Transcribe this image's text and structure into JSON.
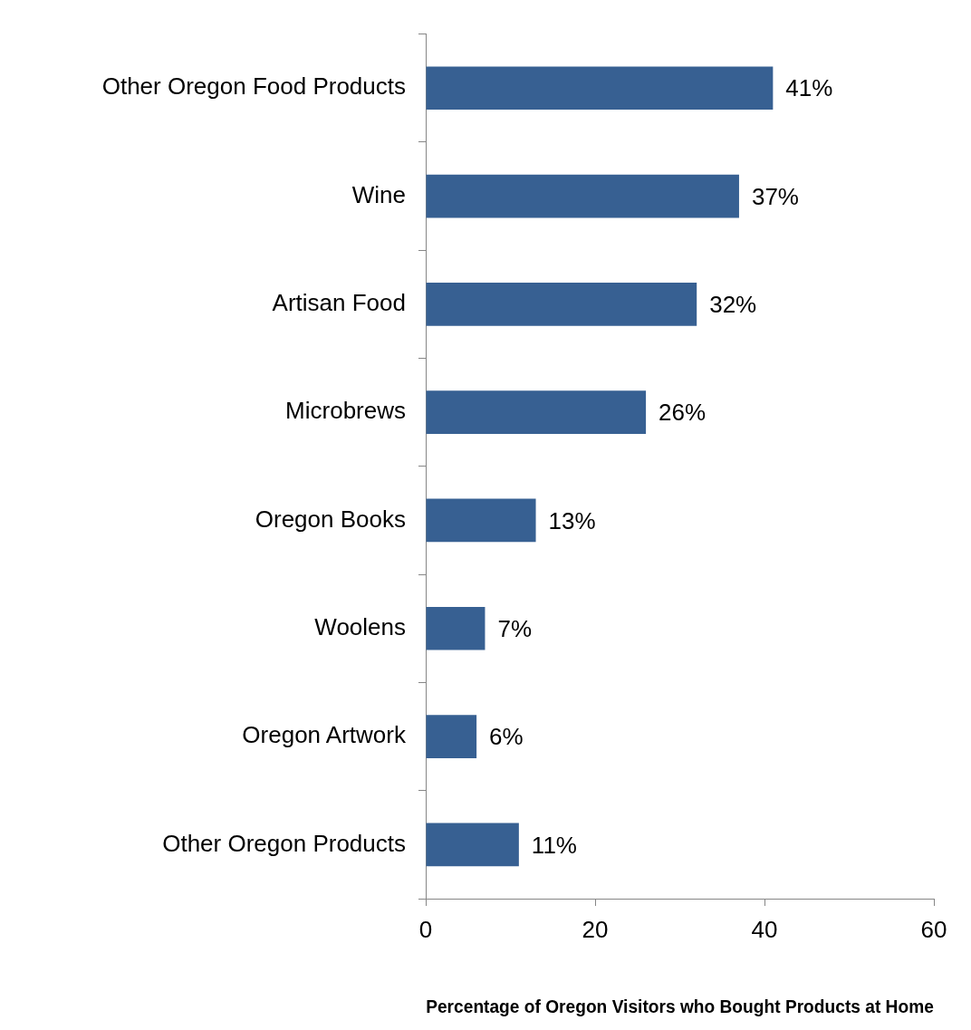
{
  "chart_data": {
    "type": "bar",
    "orientation": "horizontal",
    "xlabel": "Percentage of Oregon Visitors who Bought Products at Home",
    "categories": [
      "Other Oregon Food Products",
      "Wine",
      "Artisan Food",
      "Microbrews",
      "Oregon Books",
      "Woolens",
      "Oregon Artwork",
      "Other Oregon Products"
    ],
    "values": [
      41,
      37,
      32,
      26,
      13,
      7,
      6,
      11
    ],
    "value_labels": [
      "41%",
      "37%",
      "32%",
      "26%",
      "13%",
      "7%",
      "6%",
      "11%"
    ],
    "color": "#376092",
    "xlim": [
      0,
      60
    ],
    "xticks": [
      0,
      20,
      40,
      60
    ],
    "grid": false,
    "legend": false
  }
}
